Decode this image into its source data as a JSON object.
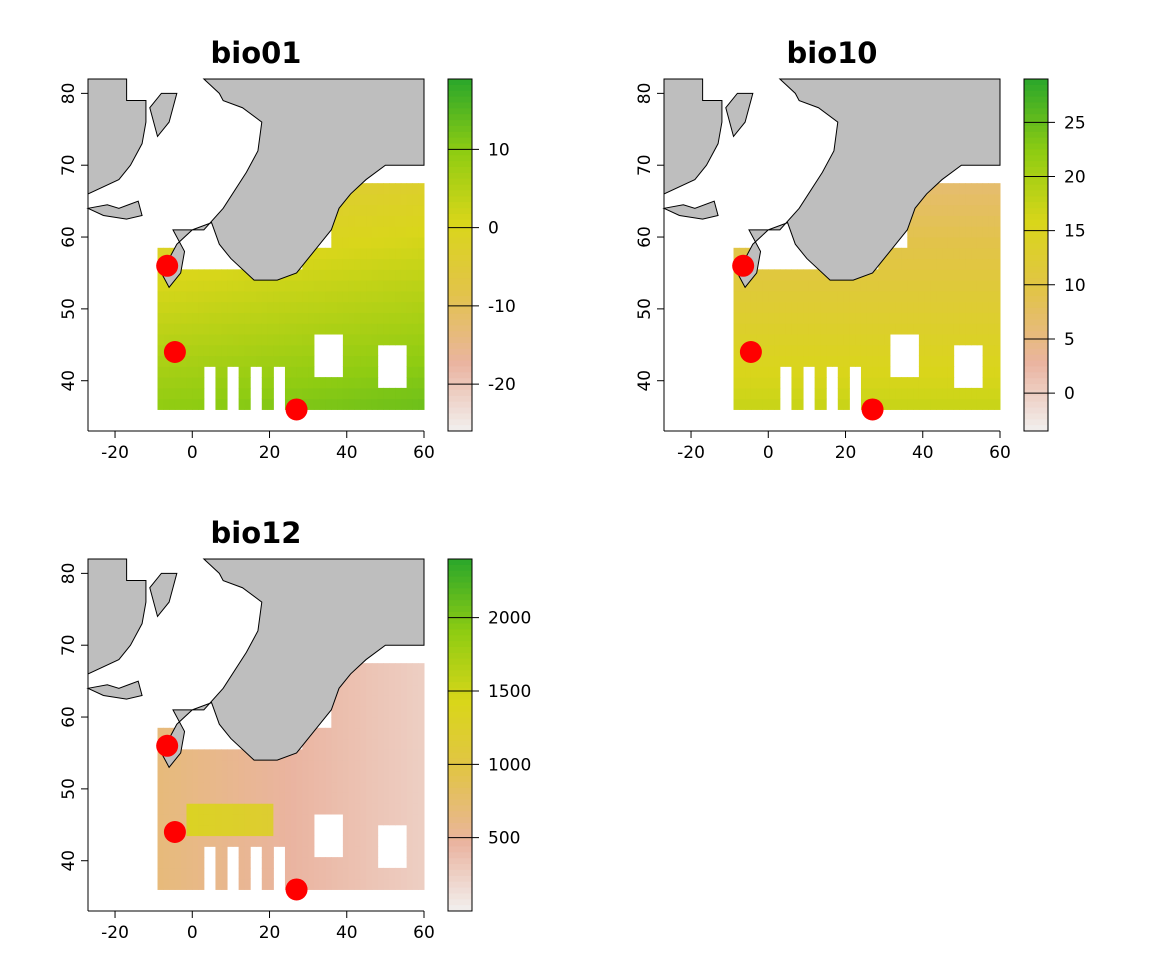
{
  "panels": [
    {
      "title": "bio01",
      "x_ticks": [
        "-20",
        "0",
        "20",
        "40",
        "60"
      ],
      "y_ticks": [
        "40",
        "50",
        "60",
        "70",
        "80"
      ],
      "legend_ticks": [
        "10",
        "0",
        "-10",
        "-20"
      ],
      "legend_range": [
        -26,
        19
      ],
      "legend_tick_values": [
        10,
        0,
        -10,
        -20
      ],
      "palette": "terrain_reversed"
    },
    {
      "title": "bio10",
      "x_ticks": [
        "-20",
        "0",
        "20",
        "40",
        "60"
      ],
      "y_ticks": [
        "40",
        "50",
        "60",
        "70",
        "80"
      ],
      "legend_ticks": [
        "25",
        "20",
        "15",
        "10",
        "5",
        "0"
      ],
      "legend_range": [
        -3.5,
        29
      ],
      "legend_tick_values": [
        25,
        20,
        15,
        10,
        5,
        0
      ],
      "palette": "terrain_reversed"
    },
    {
      "title": "bio12",
      "x_ticks": [
        "-20",
        "0",
        "20",
        "40",
        "60"
      ],
      "y_ticks": [
        "40",
        "50",
        "60",
        "70",
        "80"
      ],
      "legend_ticks": [
        "2000",
        "1500",
        "1000",
        "500"
      ],
      "legend_range": [
        0,
        2400
      ],
      "legend_tick_values": [
        2000,
        1500,
        1000,
        500
      ],
      "palette": "terrain_reversed"
    }
  ],
  "map_extent": {
    "lon": [
      -27,
      60
    ],
    "lat": [
      33,
      82
    ]
  },
  "points": [
    {
      "lon": -6.5,
      "lat": 56
    },
    {
      "lon": -4.5,
      "lat": 44
    },
    {
      "lon": 27,
      "lat": 36
    }
  ],
  "colors": {
    "land_mask": "#bebebe",
    "point": "#ff0000",
    "palette_stops": [
      "#f2f2f2",
      "#eab4a0",
      "#e2c34a",
      "#d9d61a",
      "#8fcc12",
      "#2ea82a"
    ]
  }
}
